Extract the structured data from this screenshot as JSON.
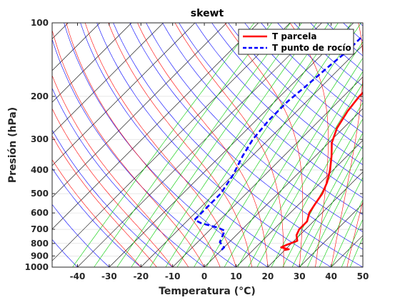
{
  "chart_data": {
    "type": "line",
    "title": "skewt",
    "xlabel": "Temperatura (°C)",
    "ylabel": "Presión (hPa)",
    "xlim": [
      -48,
      50
    ],
    "ylim": [
      100,
      1000
    ],
    "y_scale": "log",
    "x_ticks": [
      -40,
      -30,
      -20,
      -10,
      0,
      10,
      20,
      30,
      40,
      50
    ],
    "x_tick_labels": [
      "-40",
      "-30",
      "-20",
      "-10",
      "0",
      "10",
      "20",
      "30",
      "40",
      "50"
    ],
    "y_ticks": [
      100,
      200,
      300,
      400,
      500,
      600,
      700,
      800,
      900,
      1000
    ],
    "y_tick_labels": [
      "100",
      "200",
      "300",
      "400",
      "500",
      "600",
      "700",
      "800",
      "900",
      "1000"
    ],
    "grid": true,
    "legend_position": "top-right",
    "background_lines": {
      "isotherms_color": "#000000",
      "dry_adiabats_color": "#0000ff",
      "moist_adiabats_color": "#ff0000",
      "mixing_ratio_color": "#00cc00"
    },
    "series": [
      {
        "name": "T parcela",
        "color": "#ff0000",
        "style": "solid",
        "points": [
          {
            "t": 3,
            "p": 100
          },
          {
            "t": -2,
            "p": 120
          },
          {
            "t": -4,
            "p": 150
          },
          {
            "t": -5,
            "p": 170
          },
          {
            "t": -5,
            "p": 200
          },
          {
            "t": -4,
            "p": 230
          },
          {
            "t": -2,
            "p": 270
          },
          {
            "t": 1,
            "p": 310
          },
          {
            "t": 5,
            "p": 350
          },
          {
            "t": 9,
            "p": 400
          },
          {
            "t": 12,
            "p": 450
          },
          {
            "t": 14,
            "p": 500
          },
          {
            "t": 15,
            "p": 550
          },
          {
            "t": 16,
            "p": 600
          },
          {
            "t": 18,
            "p": 650
          },
          {
            "t": 18,
            "p": 700
          },
          {
            "t": 19,
            "p": 740
          },
          {
            "t": 21,
            "p": 780
          },
          {
            "t": 19,
            "p": 810
          },
          {
            "t": 18,
            "p": 830
          },
          {
            "t": 21,
            "p": 845
          },
          {
            "t": 20,
            "p": 850
          }
        ]
      },
      {
        "name": "T punto de rocío",
        "color": "#0000ff",
        "style": "dashed",
        "points": [
          {
            "t": -22,
            "p": 100
          },
          {
            "t": -23,
            "p": 110
          },
          {
            "t": -23,
            "p": 130
          },
          {
            "t": -24,
            "p": 150
          },
          {
            "t": -25,
            "p": 180
          },
          {
            "t": -26,
            "p": 210
          },
          {
            "t": -26,
            "p": 250
          },
          {
            "t": -25,
            "p": 300
          },
          {
            "t": -23,
            "p": 350
          },
          {
            "t": -20,
            "p": 420
          },
          {
            "t": -18,
            "p": 500
          },
          {
            "t": -18,
            "p": 600
          },
          {
            "t": -18,
            "p": 640
          },
          {
            "t": -15,
            "p": 660
          },
          {
            "t": -8,
            "p": 690
          },
          {
            "t": -5,
            "p": 710
          },
          {
            "t": -4,
            "p": 750
          },
          {
            "t": -3,
            "p": 790
          },
          {
            "t": 0,
            "p": 830
          },
          {
            "t": 0,
            "p": 850
          }
        ]
      }
    ]
  }
}
